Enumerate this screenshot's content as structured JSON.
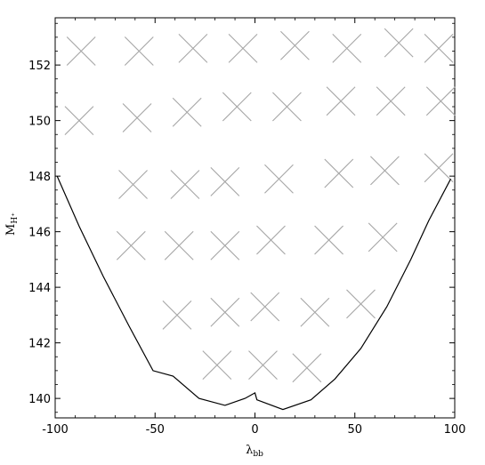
{
  "chart_data": {
    "type": "scatter",
    "title": "",
    "xlabel": "λ",
    "xlabel_sub": "bb",
    "ylabel": "M",
    "ylabel_sub": "H⁺",
    "xlim": [
      -100,
      100
    ],
    "ylim": [
      139.3,
      153.7
    ],
    "x_ticks": [
      -100,
      -50,
      0,
      50,
      100
    ],
    "x_tick_labels": [
      "-100",
      "-50",
      "0",
      "50",
      "100"
    ],
    "y_ticks": [
      140,
      142,
      144,
      146,
      148,
      150,
      152
    ],
    "y_tick_labels": [
      "140",
      "142",
      "144",
      "146",
      "148",
      "150",
      "152"
    ],
    "grid": false,
    "series": [
      {
        "marker": "x",
        "color": "#a6a6a6",
        "points": [
          [
            -87,
            152.5
          ],
          [
            -58,
            152.5
          ],
          [
            -31,
            152.6
          ],
          [
            -6,
            152.6
          ],
          [
            20,
            152.7
          ],
          [
            46,
            152.6
          ],
          [
            72,
            152.8
          ],
          [
            92,
            152.6
          ],
          [
            -88,
            150.0
          ],
          [
            -59,
            150.1
          ],
          [
            -34,
            150.3
          ],
          [
            -9,
            150.5
          ],
          [
            16,
            150.5
          ],
          [
            43,
            150.7
          ],
          [
            68,
            150.7
          ],
          [
            93,
            150.7
          ],
          [
            -61,
            147.7
          ],
          [
            -35,
            147.7
          ],
          [
            -15,
            147.8
          ],
          [
            12,
            147.9
          ],
          [
            42,
            148.1
          ],
          [
            65,
            148.2
          ],
          [
            92,
            148.3
          ],
          [
            -62,
            145.5
          ],
          [
            -38,
            145.5
          ],
          [
            -15,
            145.5
          ],
          [
            8,
            145.7
          ],
          [
            37,
            145.7
          ],
          [
            64,
            145.8
          ],
          [
            -39,
            143.0
          ],
          [
            -15,
            143.1
          ],
          [
            5,
            143.3
          ],
          [
            30,
            143.1
          ],
          [
            53,
            143.4
          ],
          [
            -19,
            141.2
          ],
          [
            4,
            141.2
          ],
          [
            26,
            141.1
          ]
        ]
      },
      {
        "marker": "line",
        "color": "#000000",
        "points": [
          [
            -99,
            148.0
          ],
          [
            -88,
            146.2
          ],
          [
            -76,
            144.4
          ],
          [
            -63,
            142.6
          ],
          [
            -51,
            141.0
          ],
          [
            -41,
            140.8
          ],
          [
            -28,
            140.0
          ],
          [
            -15,
            139.75
          ],
          [
            -5,
            140.0
          ],
          [
            0,
            140.2
          ],
          [
            1,
            139.95
          ],
          [
            14,
            139.6
          ],
          [
            28,
            139.95
          ],
          [
            40,
            140.7
          ],
          [
            53,
            141.8
          ],
          [
            66,
            143.3
          ],
          [
            78,
            145.0
          ],
          [
            87,
            146.4
          ],
          [
            98,
            147.9
          ]
        ]
      }
    ]
  }
}
